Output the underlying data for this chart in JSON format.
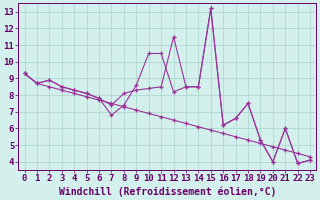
{
  "xlabel": "Windchill (Refroidissement éolien,°C)",
  "bg_color": "#d4f0ec",
  "line_color": "#993399",
  "grid_color": "#b0d8d0",
  "xlim": [
    0,
    23
  ],
  "ylim": [
    3.5,
    13.5
  ],
  "xticks": [
    0,
    1,
    2,
    3,
    4,
    5,
    6,
    7,
    8,
    9,
    10,
    11,
    12,
    13,
    14,
    15,
    16,
    17,
    18,
    19,
    20,
    21,
    22,
    23
  ],
  "yticks": [
    4,
    5,
    6,
    7,
    8,
    9,
    10,
    11,
    12,
    13
  ],
  "series": [
    [
      9.3,
      8.7,
      8.9,
      8.5,
      8.3,
      8.1,
      7.8,
      6.8,
      7.4,
      8.6,
      10.5,
      10.5,
      8.2,
      8.5,
      8.5,
      13.2,
      6.2,
      6.6,
      7.5,
      5.3,
      4.0,
      6.0,
      3.9,
      4.1
    ],
    [
      9.3,
      8.7,
      8.9,
      8.5,
      8.3,
      8.1,
      7.8,
      7.4,
      8.1,
      8.3,
      8.4,
      8.5,
      11.5,
      8.5,
      8.5,
      13.2,
      6.2,
      6.6,
      7.5,
      5.3,
      4.0,
      6.0,
      3.9,
      4.1
    ],
    [
      9.3,
      8.7,
      8.5,
      8.3,
      8.1,
      7.9,
      7.7,
      7.5,
      7.3,
      7.1,
      6.9,
      6.7,
      6.5,
      6.3,
      6.1,
      5.9,
      5.7,
      5.5,
      5.3,
      5.1,
      4.9,
      4.7,
      4.5,
      4.3
    ]
  ],
  "font_color": "#660066",
  "tick_font_size": 6.5,
  "label_font_size": 7.0
}
